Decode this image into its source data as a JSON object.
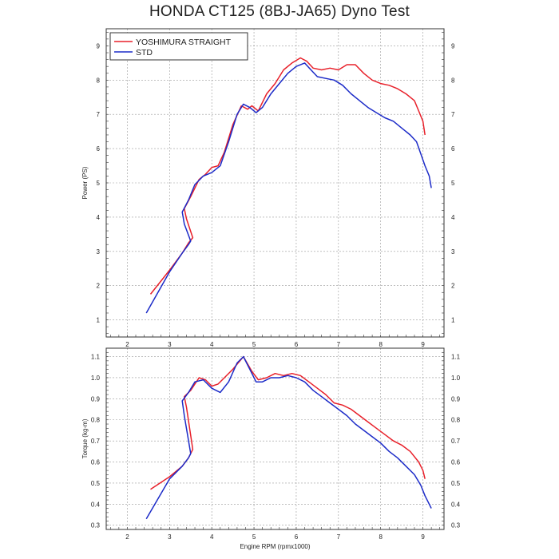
{
  "title": "HONDA CT125 (8BJ-JA65) Dyno Test",
  "colors": {
    "yoshimura": "#e8202a",
    "std": "#1c2bc8",
    "grid": "#999999",
    "frame": "#333333"
  },
  "chart_data": [
    {
      "type": "line",
      "id": "power",
      "ylabel": "Power (PS)",
      "xlabel": "",
      "xlim": [
        1.5,
        9.5
      ],
      "ylim": [
        0.5,
        9.5
      ],
      "xticks": [
        2,
        3,
        4,
        5,
        6,
        7,
        8,
        9
      ],
      "yticks": [
        1,
        2,
        3,
        4,
        5,
        6,
        7,
        8,
        9
      ],
      "grid": true,
      "legend": "top-left",
      "series": [
        {
          "name": "YOSHIMURA STRAIGHT",
          "color": "#e8202a",
          "x": [
            2.55,
            3.0,
            3.3,
            3.45,
            3.55,
            3.4,
            3.35,
            3.5,
            3.7,
            3.85,
            4.0,
            4.15,
            4.3,
            4.5,
            4.7,
            4.85,
            4.95,
            5.1,
            5.3,
            5.5,
            5.7,
            5.9,
            6.1,
            6.25,
            6.4,
            6.6,
            6.8,
            7.0,
            7.2,
            7.4,
            7.6,
            7.8,
            8.0,
            8.2,
            8.4,
            8.6,
            8.8,
            8.9,
            9.0,
            9.05
          ],
          "y": [
            1.75,
            2.45,
            2.95,
            3.25,
            3.4,
            3.95,
            4.25,
            4.6,
            5.1,
            5.25,
            5.45,
            5.5,
            5.9,
            6.7,
            7.25,
            7.15,
            7.25,
            7.1,
            7.6,
            7.9,
            8.3,
            8.5,
            8.65,
            8.55,
            8.35,
            8.3,
            8.35,
            8.3,
            8.45,
            8.45,
            8.2,
            8.0,
            7.9,
            7.85,
            7.75,
            7.6,
            7.4,
            7.1,
            6.8,
            6.4
          ]
        },
        {
          "name": "STD",
          "color": "#1c2bc8",
          "x": [
            2.45,
            3.0,
            3.3,
            3.45,
            3.5,
            3.35,
            3.3,
            3.45,
            3.6,
            3.8,
            4.0,
            4.2,
            4.4,
            4.6,
            4.75,
            4.9,
            5.05,
            5.2,
            5.4,
            5.6,
            5.8,
            6.0,
            6.2,
            6.35,
            6.5,
            6.7,
            6.9,
            7.1,
            7.3,
            7.5,
            7.7,
            7.9,
            8.1,
            8.3,
            8.5,
            8.7,
            8.85,
            8.95,
            9.05,
            9.15,
            9.2
          ],
          "y": [
            1.2,
            2.4,
            2.95,
            3.2,
            3.3,
            3.8,
            4.15,
            4.5,
            4.95,
            5.2,
            5.3,
            5.5,
            6.2,
            7.0,
            7.3,
            7.2,
            7.05,
            7.2,
            7.6,
            7.9,
            8.2,
            8.4,
            8.5,
            8.3,
            8.1,
            8.05,
            8.0,
            7.85,
            7.6,
            7.4,
            7.2,
            7.05,
            6.9,
            6.8,
            6.6,
            6.4,
            6.2,
            5.85,
            5.5,
            5.2,
            4.85
          ]
        }
      ]
    },
    {
      "type": "line",
      "id": "torque",
      "ylabel": "Torque (kg-m)",
      "xlabel": "Engine RPM (rpmx1000)",
      "xlim": [
        1.5,
        9.5
      ],
      "ylim": [
        0.28,
        1.14
      ],
      "xticks": [
        2,
        3,
        4,
        5,
        6,
        7,
        8,
        9
      ],
      "yticks": [
        0.3,
        0.4,
        0.5,
        0.6,
        0.7,
        0.8,
        0.9,
        1.0,
        1.1
      ],
      "grid": true,
      "legend": "none",
      "series": [
        {
          "name": "YOSHIMURA STRAIGHT",
          "color": "#e8202a",
          "x": [
            2.55,
            3.0,
            3.3,
            3.45,
            3.55,
            3.4,
            3.35,
            3.5,
            3.7,
            3.85,
            4.0,
            4.15,
            4.3,
            4.5,
            4.75,
            4.95,
            5.1,
            5.3,
            5.5,
            5.7,
            5.9,
            6.1,
            6.3,
            6.5,
            6.7,
            6.9,
            7.1,
            7.3,
            7.5,
            7.7,
            7.9,
            8.1,
            8.3,
            8.5,
            8.7,
            8.9,
            9.0,
            9.05
          ],
          "y": [
            0.47,
            0.53,
            0.58,
            0.62,
            0.66,
            0.86,
            0.91,
            0.94,
            1.0,
            0.99,
            0.96,
            0.97,
            1.0,
            1.04,
            1.1,
            1.03,
            0.99,
            1.0,
            1.02,
            1.01,
            1.02,
            1.01,
            0.98,
            0.95,
            0.92,
            0.88,
            0.87,
            0.85,
            0.82,
            0.79,
            0.76,
            0.73,
            0.7,
            0.68,
            0.65,
            0.6,
            0.56,
            0.52
          ]
        },
        {
          "name": "STD",
          "color": "#1c2bc8",
          "x": [
            2.45,
            3.0,
            3.3,
            3.45,
            3.5,
            3.35,
            3.3,
            3.45,
            3.6,
            3.8,
            4.0,
            4.2,
            4.4,
            4.6,
            4.75,
            4.9,
            5.05,
            5.2,
            5.4,
            5.6,
            5.8,
            6.0,
            6.2,
            6.4,
            6.6,
            6.8,
            7.0,
            7.2,
            7.4,
            7.6,
            7.8,
            8.0,
            8.2,
            8.4,
            8.6,
            8.8,
            8.95,
            9.05,
            9.15,
            9.2
          ],
          "y": [
            0.33,
            0.52,
            0.58,
            0.62,
            0.64,
            0.82,
            0.89,
            0.93,
            0.98,
            0.99,
            0.95,
            0.93,
            0.98,
            1.07,
            1.1,
            1.04,
            0.98,
            0.98,
            1.0,
            1.0,
            1.01,
            1.0,
            0.98,
            0.94,
            0.91,
            0.88,
            0.85,
            0.82,
            0.78,
            0.75,
            0.72,
            0.69,
            0.65,
            0.62,
            0.58,
            0.54,
            0.49,
            0.44,
            0.4,
            0.38
          ]
        }
      ]
    }
  ]
}
